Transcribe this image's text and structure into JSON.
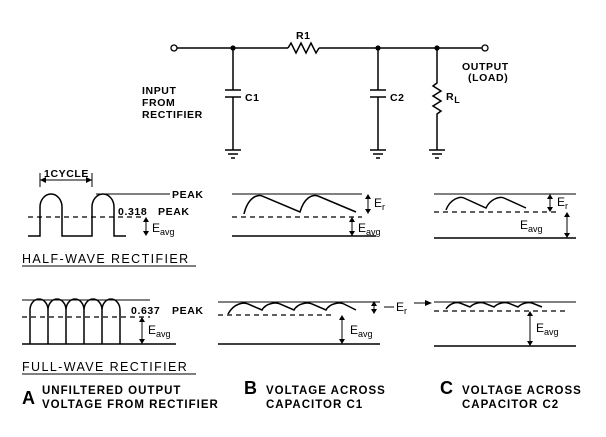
{
  "circuit": {
    "input_label": [
      "INPUT",
      "FROM",
      "RECTIFIER"
    ],
    "output_label": [
      "OUTPUT",
      "(LOAD)"
    ],
    "r1": "R1",
    "c1": "C1",
    "c2": "C2",
    "rl": "R",
    "rl_sub": "L"
  },
  "half_wave": {
    "cycle_label": "1CYCLE",
    "peak_label": "PEAK",
    "ratio_label": "0.318",
    "ratio_peak": "PEAK",
    "title": "HALF-WAVE RECTIFIER"
  },
  "full_wave": {
    "ratio_label": "0.637",
    "peak_label": "PEAK",
    "title": "FULL-WAVE RECTIFIER"
  },
  "symbols": {
    "er": "E",
    "er_sub": "r",
    "eavg": "E",
    "eavg_sub": "avg"
  },
  "captions": {
    "a_letter": "A",
    "a_line1": "UNFILTERED OUTPUT",
    "a_line2": "VOLTAGE FROM RECTIFIER",
    "b_letter": "B",
    "b_line1": "VOLTAGE ACROSS",
    "b_line2": "CAPACITOR C1",
    "c_letter": "C",
    "c_line1": "VOLTAGE ACROSS",
    "c_line2": "CAPACITOR C2"
  }
}
